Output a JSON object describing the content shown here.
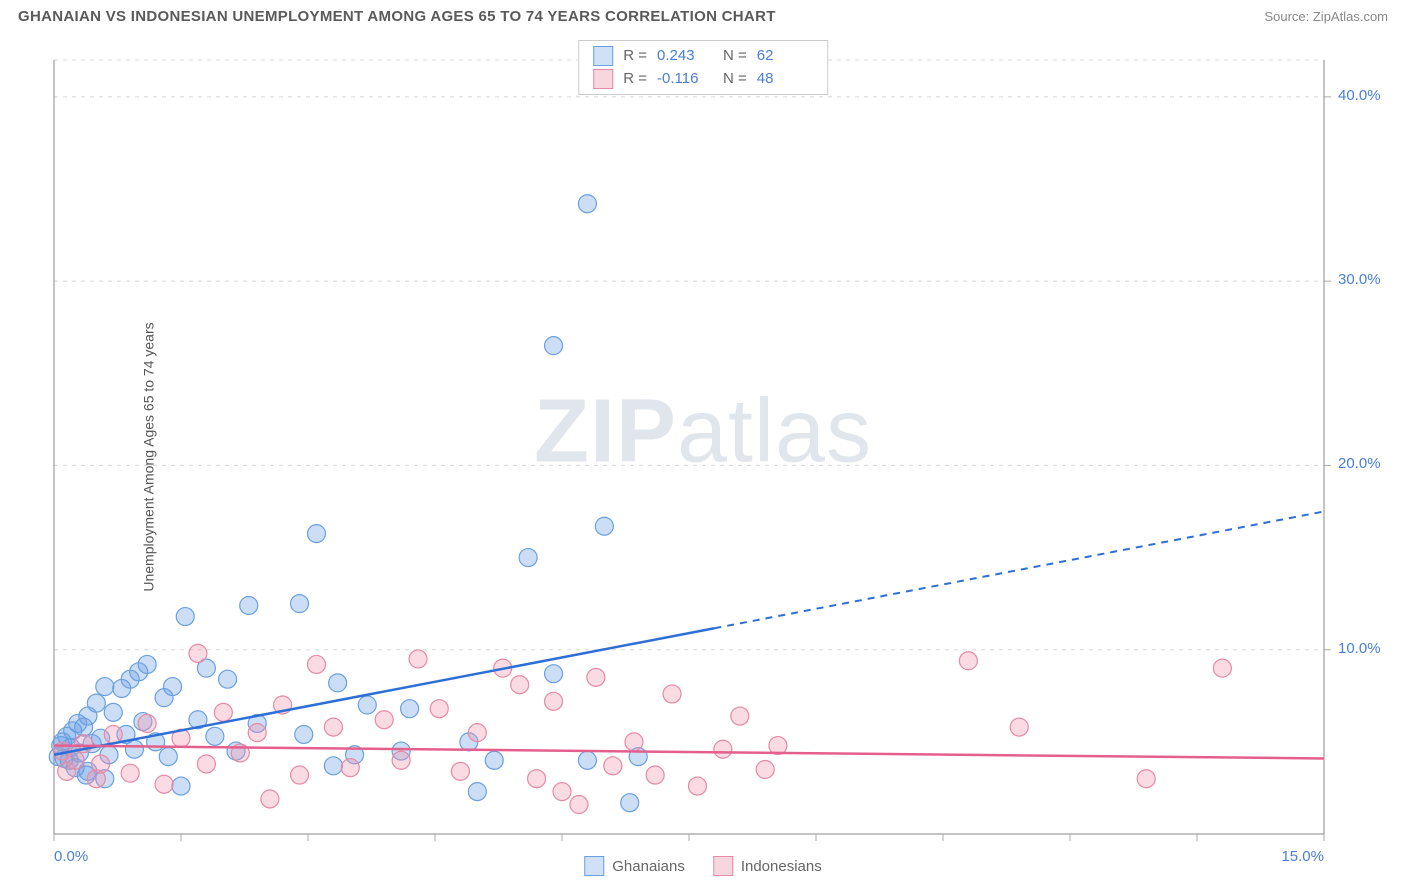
{
  "title": "GHANAIAN VS INDONESIAN UNEMPLOYMENT AMONG AGES 65 TO 74 YEARS CORRELATION CHART",
  "source": "Source: ZipAtlas.com",
  "ylabel": "Unemployment Among Ages 65 to 74 years",
  "watermark_zip": "ZIP",
  "watermark_atlas": "atlas",
  "chart": {
    "type": "scatter",
    "background_color": "#ffffff",
    "grid_color": "#d8d8d8",
    "axis_color": "#888",
    "tick_color": "#aaa",
    "xlim": [
      0,
      15
    ],
    "ylim": [
      0,
      42
    ],
    "x_ticks": [
      0,
      1.5,
      3,
      4.5,
      6,
      7.5,
      9,
      10.5,
      12,
      13.5,
      15
    ],
    "x_tick_labels": {
      "0": "0.0%",
      "15": "15.0%"
    },
    "y_ticks": [
      10,
      20,
      30,
      40
    ],
    "y_tick_labels": {
      "10": "10.0%",
      "20": "20.0%",
      "30": "30.0%",
      "40": "40.0%"
    },
    "label_color": "#4a7fd8",
    "series": [
      {
        "name": "Ghanaians",
        "color_fill": "rgba(110,160,230,0.35)",
        "color_stroke": "#6aa0e0",
        "swatch_bg": "#cfe0f7",
        "swatch_border": "#6aa0e0",
        "R": "0.243",
        "N": "62",
        "trend": {
          "color": "#2e6fd6",
          "y_at_x0": 4.3,
          "y_at_xmax": 17.5,
          "solid_until_x": 7.8
        },
        "marker_radius": 9,
        "points": [
          [
            0.05,
            4.2
          ],
          [
            0.08,
            4.8
          ],
          [
            0.1,
            5.0
          ],
          [
            0.12,
            4.1
          ],
          [
            0.15,
            5.3
          ],
          [
            0.18,
            4.0
          ],
          [
            0.2,
            4.7
          ],
          [
            0.22,
            5.6
          ],
          [
            0.25,
            3.6
          ],
          [
            0.28,
            6.0
          ],
          [
            0.3,
            4.4
          ],
          [
            0.35,
            5.8
          ],
          [
            0.38,
            3.2
          ],
          [
            0.4,
            6.4
          ],
          [
            0.45,
            4.9
          ],
          [
            0.5,
            7.1
          ],
          [
            0.55,
            5.2
          ],
          [
            0.6,
            8.0
          ],
          [
            0.65,
            4.3
          ],
          [
            0.7,
            6.6
          ],
          [
            0.8,
            7.9
          ],
          [
            0.85,
            5.4
          ],
          [
            0.9,
            8.4
          ],
          [
            0.95,
            4.6
          ],
          [
            1.0,
            8.8
          ],
          [
            1.05,
            6.1
          ],
          [
            1.1,
            9.2
          ],
          [
            1.2,
            5.0
          ],
          [
            1.3,
            7.4
          ],
          [
            1.35,
            4.2
          ],
          [
            1.4,
            8.0
          ],
          [
            1.5,
            2.6
          ],
          [
            1.55,
            11.8
          ],
          [
            1.7,
            6.2
          ],
          [
            1.8,
            9.0
          ],
          [
            1.9,
            5.3
          ],
          [
            2.05,
            8.4
          ],
          [
            2.15,
            4.5
          ],
          [
            2.3,
            12.4
          ],
          [
            2.4,
            6.0
          ],
          [
            2.9,
            12.5
          ],
          [
            2.95,
            5.4
          ],
          [
            3.1,
            16.3
          ],
          [
            3.3,
            3.7
          ],
          [
            3.35,
            8.2
          ],
          [
            3.55,
            4.3
          ],
          [
            3.7,
            7.0
          ],
          [
            4.1,
            4.5
          ],
          [
            4.2,
            6.8
          ],
          [
            4.9,
            5.0
          ],
          [
            5.0,
            2.3
          ],
          [
            5.2,
            4.0
          ],
          [
            5.6,
            15.0
          ],
          [
            5.9,
            8.7
          ],
          [
            6.3,
            4.0
          ],
          [
            6.5,
            16.7
          ],
          [
            6.8,
            1.7
          ],
          [
            6.9,
            4.2
          ],
          [
            5.9,
            26.5
          ],
          [
            6.3,
            34.2
          ],
          [
            0.6,
            3.0
          ],
          [
            0.4,
            3.4
          ]
        ]
      },
      {
        "name": "Indonesians",
        "color_fill": "rgba(240,150,175,0.35)",
        "color_stroke": "#e68aa6",
        "swatch_bg": "#f7d6e0",
        "swatch_border": "#e68aa6",
        "R": "-0.116",
        "N": "48",
        "trend": {
          "color": "#e55f8e",
          "y_at_x0": 4.8,
          "y_at_xmax": 4.1,
          "solid_until_x": 15
        },
        "marker_radius": 9,
        "points": [
          [
            0.1,
            4.5
          ],
          [
            0.15,
            3.4
          ],
          [
            0.35,
            4.9
          ],
          [
            0.5,
            3.0
          ],
          [
            0.7,
            5.4
          ],
          [
            0.9,
            3.3
          ],
          [
            1.1,
            6.0
          ],
          [
            1.3,
            2.7
          ],
          [
            1.5,
            5.2
          ],
          [
            1.7,
            9.8
          ],
          [
            1.8,
            3.8
          ],
          [
            2.0,
            6.6
          ],
          [
            2.2,
            4.4
          ],
          [
            2.4,
            5.5
          ],
          [
            2.55,
            1.9
          ],
          [
            2.7,
            7.0
          ],
          [
            2.9,
            3.2
          ],
          [
            3.1,
            9.2
          ],
          [
            3.3,
            5.8
          ],
          [
            3.5,
            3.6
          ],
          [
            3.9,
            6.2
          ],
          [
            4.1,
            4.0
          ],
          [
            4.3,
            9.5
          ],
          [
            4.55,
            6.8
          ],
          [
            4.8,
            3.4
          ],
          [
            5.0,
            5.5
          ],
          [
            5.3,
            9.0
          ],
          [
            5.5,
            8.1
          ],
          [
            5.7,
            3.0
          ],
          [
            5.9,
            7.2
          ],
          [
            6.4,
            8.5
          ],
          [
            6.0,
            2.3
          ],
          [
            6.2,
            1.6
          ],
          [
            6.6,
            3.7
          ],
          [
            6.85,
            5.0
          ],
          [
            7.1,
            3.2
          ],
          [
            7.3,
            7.6
          ],
          [
            7.6,
            2.6
          ],
          [
            7.9,
            4.6
          ],
          [
            8.1,
            6.4
          ],
          [
            8.4,
            3.5
          ],
          [
            8.55,
            4.8
          ],
          [
            10.8,
            9.4
          ],
          [
            11.4,
            5.8
          ],
          [
            12.9,
            3.0
          ],
          [
            13.8,
            9.0
          ],
          [
            0.25,
            4.0
          ],
          [
            0.55,
            3.8
          ]
        ]
      }
    ]
  },
  "legend_bottom": [
    {
      "label": "Ghanaians",
      "swatch_bg": "#cfe0f7",
      "swatch_border": "#6aa0e0"
    },
    {
      "label": "Indonesians",
      "swatch_bg": "#f7d6e0",
      "swatch_border": "#e68aa6"
    }
  ]
}
